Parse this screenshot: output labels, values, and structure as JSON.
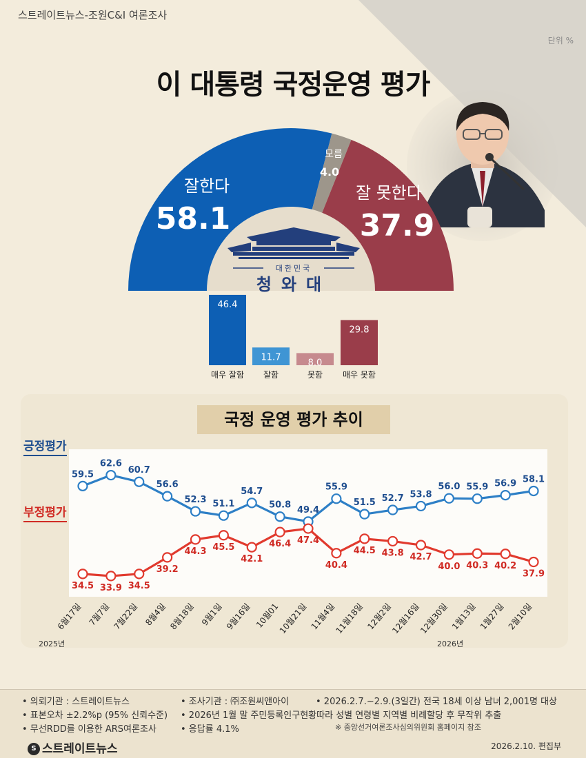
{
  "header": {
    "source": "스트레이트뉴스-조원C&I 여론조사",
    "unit": "단위 %",
    "title": "이 대통령 국정운영 평가"
  },
  "colors": {
    "positive": "#0d5fb4",
    "negative": "#9a3d4a",
    "unknown": "#9d968b",
    "very_good": "#0d5fb4",
    "good": "#3f95d4",
    "bad": "#c68a8e",
    "very_bad": "#9a3d4a",
    "line_positive": "#2d7fc6",
    "line_negative": "#e13a2e"
  },
  "emblem": {
    "top": "대한민국",
    "name": "청와대"
  },
  "chart_data": [
    {
      "type": "pie",
      "variant": "half-donut",
      "slices": [
        {
          "label": "잘한다",
          "value": 58.1
        },
        {
          "label": "모름",
          "value": 4.0
        },
        {
          "label": "잘 못한다",
          "value": 37.9
        }
      ]
    },
    {
      "type": "bar",
      "categories": [
        "매우 잘함",
        "잘함",
        "못함",
        "매우 못함"
      ],
      "values": [
        46.4,
        11.7,
        8.0,
        29.8
      ]
    },
    {
      "type": "line",
      "title": "국정 운영 평가 추이",
      "x": [
        "6월17일",
        "7월7일",
        "7월22일",
        "8월4일",
        "8월18일",
        "9월1일",
        "9월16일",
        "10월01",
        "10월21일",
        "11월4일",
        "11월18일",
        "12월2일",
        "12월16일",
        "12월30일",
        "1월13일",
        "1월27일",
        "2월10일"
      ],
      "year_labels": [
        "2025년",
        "2026년"
      ],
      "series": [
        {
          "name": "긍정평가",
          "values": [
            59.5,
            62.6,
            60.7,
            56.6,
            52.3,
            51.1,
            54.7,
            50.8,
            49.4,
            55.9,
            51.5,
            52.7,
            53.8,
            56.0,
            55.9,
            56.9,
            58.1
          ]
        },
        {
          "name": "부정평가",
          "values": [
            34.5,
            33.9,
            34.5,
            39.2,
            44.3,
            45.5,
            42.1,
            46.4,
            47.4,
            40.4,
            44.5,
            43.8,
            42.7,
            40.0,
            40.3,
            40.2,
            37.9
          ]
        }
      ]
    }
  ],
  "footer": {
    "items": [
      "• 의뢰기관 : 스트레이트뉴스",
      "• 조사기관 : ㈜조원씨앤아이",
      "• 2026.2.7.~2.9.(3일간) 전국 18세 이상 남녀 2,001명 대상",
      "• 표본오차 ±2.2%p (95% 신뢰수준)",
      "• 2026년 1월 말 주민등록인구현황따라 성별 연령별 지역별 비례할당 후 무작위 추출",
      "• 무선RDD를 이용한 ARS여론조사",
      "• 응답률 4.1%"
    ],
    "reference": "※ 중앙선거여론조사심의위원회 홈페이지 참조",
    "brand": "스트레이트뉴스",
    "date": "2026.2.10.  편집부"
  }
}
